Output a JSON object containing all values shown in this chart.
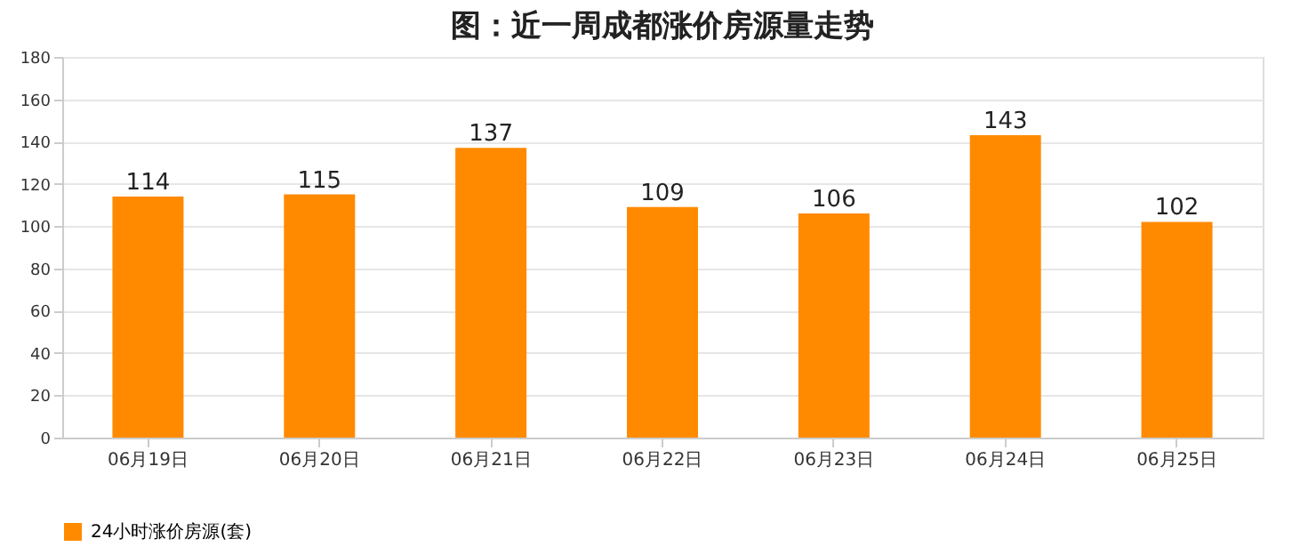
{
  "chart_data": {
    "type": "bar",
    "title": "图：近一周成都涨价房源量走势",
    "categories": [
      "06月19日",
      "06月20日",
      "06月21日",
      "06月22日",
      "06月23日",
      "06月24日",
      "06月25日"
    ],
    "series": [
      {
        "name": "24小时涨价房源(套)",
        "color": "#ff8a00",
        "values": [
          114,
          115,
          137,
          109,
          106,
          143,
          102
        ]
      }
    ],
    "ylim": [
      0,
      180
    ],
    "yticks": [
      0,
      20,
      40,
      60,
      80,
      100,
      120,
      140,
      160,
      180
    ],
    "grid": "y",
    "legend": "bottom",
    "data_labels": true
  }
}
